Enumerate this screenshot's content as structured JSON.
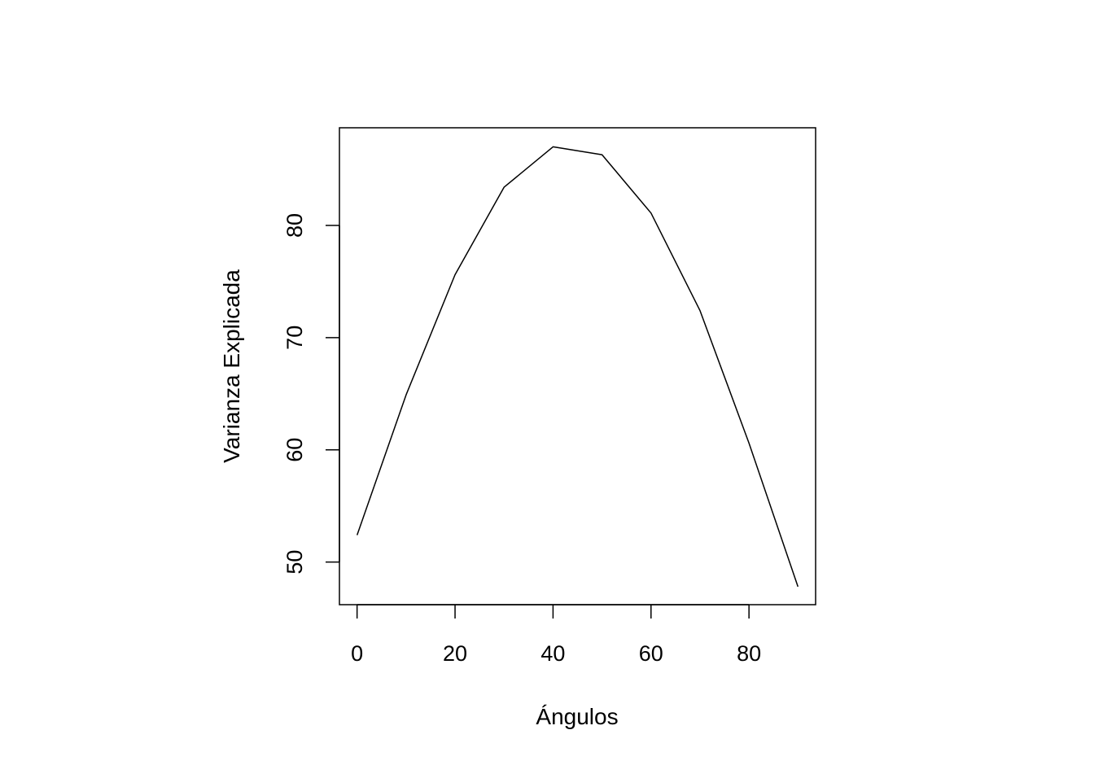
{
  "chart_data": {
    "type": "line",
    "title": "",
    "xlabel": "Ángulos",
    "ylabel": "Varianza Explicada",
    "x": [
      0,
      10,
      20,
      30,
      40,
      50,
      60,
      70,
      80,
      90
    ],
    "series": [
      {
        "values": [
          52.4,
          64.9,
          75.6,
          83.4,
          87.0,
          86.3,
          81.1,
          72.4,
          60.6,
          47.8
        ]
      }
    ],
    "xlim": [
      -3.6,
      93.6
    ],
    "ylim": [
      46.2,
      88.7
    ],
    "xticks": [
      0,
      20,
      40,
      60,
      80
    ],
    "xtick_labels": [
      "0",
      "20",
      "40",
      "60",
      "80"
    ],
    "yticks": [
      50,
      60,
      70,
      80
    ],
    "ytick_labels": [
      "50",
      "60",
      "70",
      "80"
    ],
    "grid": false,
    "legend": "none",
    "line_color": "#000000"
  }
}
